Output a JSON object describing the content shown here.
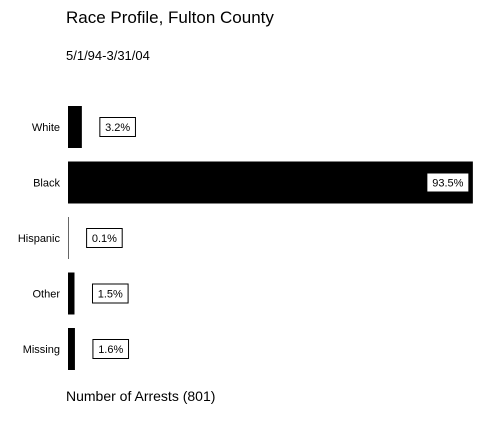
{
  "chart_data": {
    "type": "bar",
    "orientation": "horizontal",
    "title": "Race Profile, Fulton County",
    "subtitle": "5/1/94-3/31/04",
    "xlabel": "Number of Arrests (801)",
    "ylabel": "",
    "categories": [
      "White",
      "Black",
      "Hispanic",
      "Other",
      "Missing"
    ],
    "values": [
      3.2,
      93.5,
      0.1,
      1.5,
      1.6
    ],
    "data_labels": [
      "3.2%",
      "93.5%",
      "0.1%",
      "1.5%",
      "1.6%"
    ],
    "xlim": [
      0,
      100
    ],
    "grid": false,
    "legend": "none",
    "bar_color": "#000000"
  }
}
